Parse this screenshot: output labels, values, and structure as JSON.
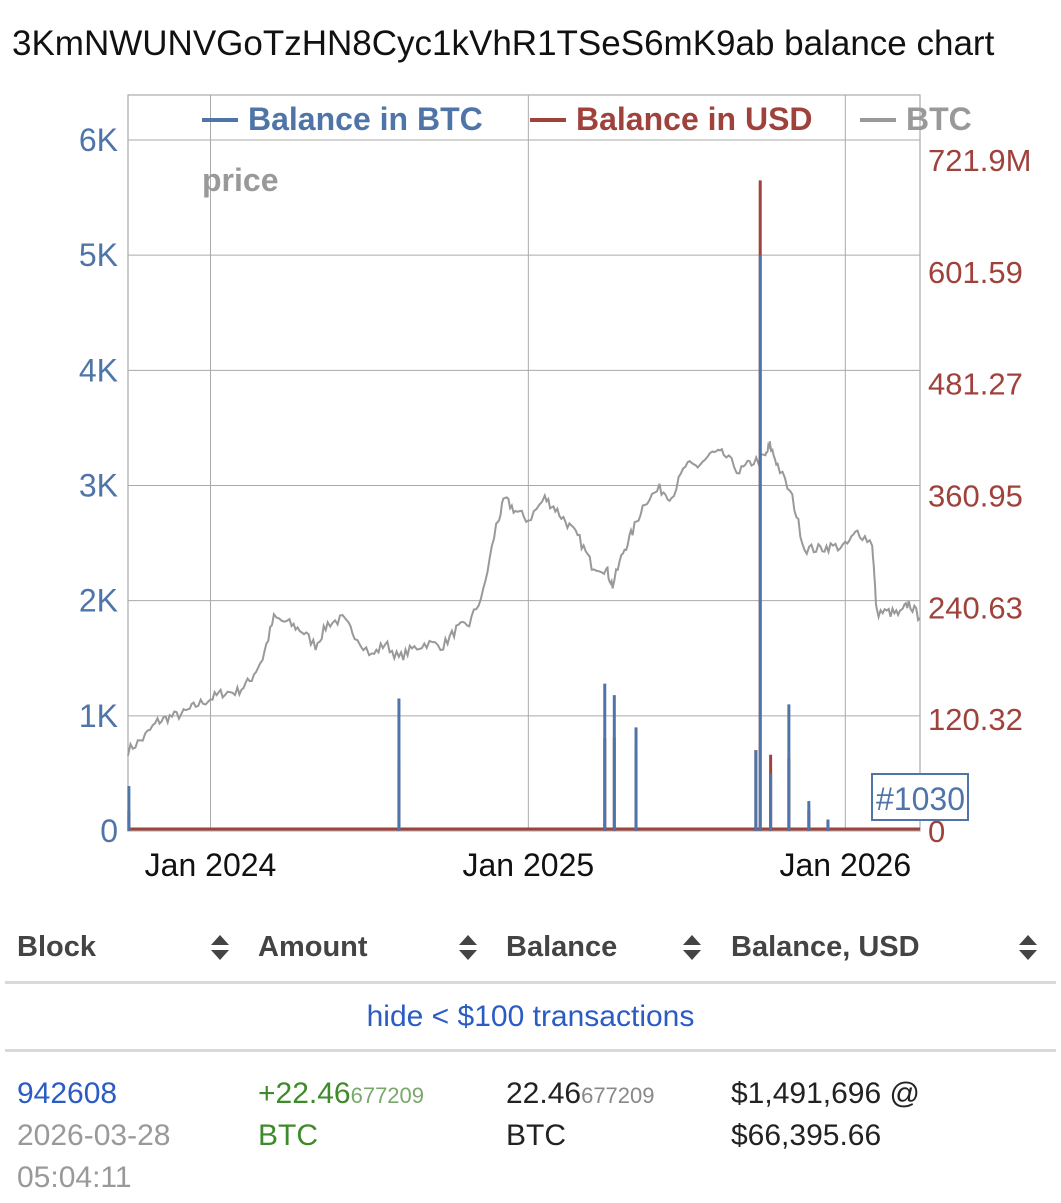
{
  "page": {
    "title": "3KmNWUNVGoTzHN8Cyc1kVhR1TSeS6mK9ab balance chart"
  },
  "chart_data": {
    "type": "line",
    "legend": [
      {
        "name": "Balance in BTC",
        "color": "#4f75a8"
      },
      {
        "name": "Balance in USD",
        "color": "#a0423c"
      },
      {
        "name": "BTC price",
        "color": "#999999"
      }
    ],
    "legend_placement": "top-center",
    "grid": true,
    "x_ticks": [
      "Jan 2024",
      "Jan 2025",
      "Jan 2026"
    ],
    "x_range": [
      "2023-09-28",
      "2026-03-28"
    ],
    "y_left_ticks": [
      "0",
      "1K",
      "2K",
      "3K",
      "4K",
      "5K",
      "6K"
    ],
    "y_left_range": [
      0,
      6000
    ],
    "y_right_ticks": [
      "0",
      "120.32",
      "240.63",
      "360.95",
      "481.27",
      "601.59",
      "721.9M"
    ],
    "y_right_range": [
      0,
      721.9
    ],
    "marker_label": "#1030",
    "series": [
      {
        "name": "BTC price",
        "axis": "left",
        "x": [
          "2023-09-28",
          "2023-10-15",
          "2023-11-01",
          "2023-11-15",
          "2023-12-01",
          "2023-12-15",
          "2024-01-01",
          "2024-01-15",
          "2024-02-01",
          "2024-02-15",
          "2024-03-01",
          "2024-03-14",
          "2024-04-01",
          "2024-04-15",
          "2024-05-01",
          "2024-05-15",
          "2024-06-01",
          "2024-06-15",
          "2024-07-05",
          "2024-07-20",
          "2024-08-05",
          "2024-08-20",
          "2024-09-06",
          "2024-09-25",
          "2024-10-10",
          "2024-10-25",
          "2024-11-10",
          "2024-11-25",
          "2024-12-05",
          "2024-12-17",
          "2025-01-01",
          "2025-01-20",
          "2025-02-01",
          "2025-02-15",
          "2025-03-01",
          "2025-03-15",
          "2025-04-01",
          "2025-04-08",
          "2025-04-20",
          "2025-05-01",
          "2025-05-15",
          "2025-06-01",
          "2025-06-15",
          "2025-07-01",
          "2025-07-15",
          "2025-08-01",
          "2025-08-14",
          "2025-09-01",
          "2025-09-15",
          "2025-10-01",
          "2025-10-06",
          "2025-10-15",
          "2025-11-01",
          "2025-11-15",
          "2025-12-01",
          "2025-12-15",
          "2026-01-01",
          "2026-01-15",
          "2026-02-01",
          "2026-02-06",
          "2026-02-20",
          "2026-03-05",
          "2026-03-15",
          "2026-03-28"
        ],
        "values": [
          700,
          800,
          950,
          990,
          1020,
          1090,
          1150,
          1200,
          1210,
          1300,
          1500,
          1850,
          1800,
          1740,
          1610,
          1800,
          1840,
          1710,
          1520,
          1630,
          1500,
          1580,
          1630,
          1610,
          1750,
          1800,
          2070,
          2650,
          2880,
          2780,
          2700,
          2890,
          2800,
          2670,
          2530,
          2310,
          2270,
          2130,
          2420,
          2600,
          2860,
          2970,
          2900,
          3170,
          3170,
          3280,
          3270,
          3120,
          3200,
          3250,
          3350,
          3180,
          2890,
          2450,
          2450,
          2470,
          2470,
          2600,
          2500,
          1900,
          1900,
          1880,
          1980,
          1850
        ]
      },
      {
        "name": "Balance in USD",
        "axis": "right",
        "x": [
          "2023-09-29",
          "2024-08-05",
          "2025-03-30",
          "2025-04-10",
          "2025-05-05",
          "2025-09-20",
          "2025-09-25",
          "2025-10-07",
          "2025-10-28",
          "2025-11-20",
          "2025-12-12"
        ],
        "values": [
          22,
          75,
          100,
          100,
          92,
          87,
          700,
          82,
          78,
          22,
          10
        ]
      },
      {
        "name": "Balance in BTC",
        "axis": "left",
        "x": [
          "2023-09-29",
          "2024-08-05",
          "2025-03-30",
          "2025-04-10",
          "2025-05-05",
          "2025-09-20",
          "2025-09-25",
          "2025-10-07",
          "2025-10-28",
          "2025-11-20",
          "2025-12-12"
        ],
        "values": [
          390,
          1150,
          1280,
          1180,
          900,
          700,
          5000,
          500,
          1100,
          260,
          100
        ]
      }
    ]
  },
  "table": {
    "headers": [
      "Block",
      "Amount",
      "Balance",
      "Balance, USD"
    ],
    "filter_link": "hide < $100 transactions",
    "rows": [
      {
        "block": "942608",
        "date": "2026-03-28",
        "time": "05:04:11",
        "amount_main": "+22.46",
        "amount_small": "677209",
        "amount_unit": "BTC",
        "balance_main": "22.46",
        "balance_small": "677209",
        "balance_unit": "BTC",
        "usd_balance": "$1,491,696 @",
        "usd_price": "$66,395.66"
      }
    ]
  }
}
